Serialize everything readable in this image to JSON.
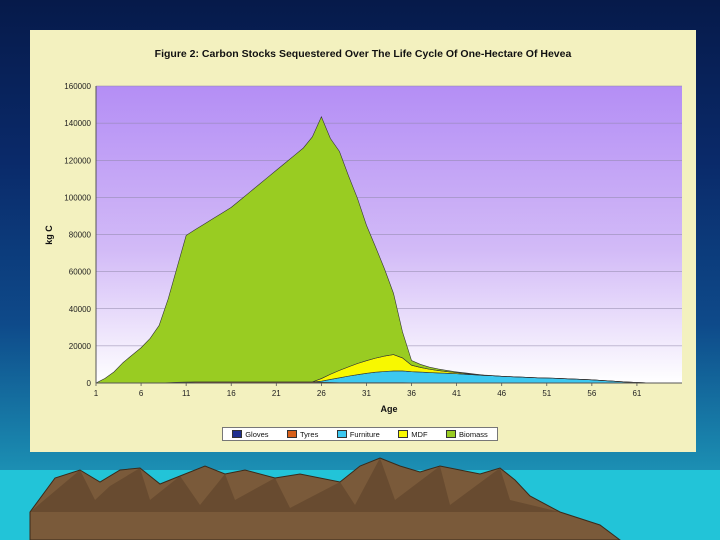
{
  "chart_data": {
    "type": "area",
    "title": "Figure 2: Carbon Stocks Sequestered Over The Life Cycle Of One-Hectare Of Hevea",
    "xlabel": "Age",
    "ylabel": "kg C",
    "xlim": [
      1,
      66
    ],
    "ylim": [
      0,
      160000
    ],
    "x_ticks": [
      "1",
      "6",
      "11",
      "16",
      "21",
      "26",
      "31",
      "36",
      "41",
      "46",
      "51",
      "56",
      "61"
    ],
    "y_ticks": [
      "0",
      "20000",
      "40000",
      "60000",
      "80000",
      "100000",
      "120000",
      "140000",
      "160000"
    ],
    "legend_position": "bottom",
    "x": [
      1,
      2,
      3,
      4,
      5,
      6,
      7,
      8,
      9,
      10,
      11,
      12,
      13,
      14,
      15,
      16,
      17,
      18,
      19,
      20,
      21,
      22,
      23,
      24,
      25,
      26,
      27,
      28,
      29,
      30,
      31,
      32,
      33,
      34,
      35,
      36,
      37,
      38,
      39,
      40,
      41,
      42,
      43,
      44,
      45,
      46,
      47,
      48,
      49,
      50,
      51,
      52,
      53,
      54,
      55,
      56,
      57,
      58,
      59,
      60,
      61,
      62,
      63,
      64,
      65,
      66
    ],
    "series": [
      {
        "name": "Gloves",
        "color": "#1f2f8f",
        "values": [
          0,
          0,
          0,
          0,
          0,
          0,
          0,
          0,
          0,
          0,
          0,
          0,
          0,
          0,
          0,
          0,
          0,
          0,
          0,
          0,
          0,
          0,
          0,
          0,
          0,
          0,
          0,
          0,
          0,
          0,
          0,
          0,
          0,
          0,
          0,
          0,
          0,
          0,
          0,
          0,
          0,
          0,
          0,
          0,
          0,
          0,
          0,
          0,
          0,
          0,
          0,
          0,
          0,
          0,
          0,
          0,
          0,
          0,
          0,
          0,
          0,
          0,
          0,
          0,
          0,
          0
        ]
      },
      {
        "name": "Tyres",
        "color": "#d8601a",
        "values": [
          0,
          0,
          0,
          0,
          0,
          0,
          0,
          0,
          200,
          400,
          500,
          600,
          600,
          600,
          600,
          600,
          600,
          600,
          600,
          600,
          600,
          600,
          600,
          600,
          600,
          400,
          300,
          200,
          200,
          200,
          200,
          200,
          200,
          200,
          200,
          100,
          100,
          100,
          100,
          100,
          100,
          100,
          0,
          0,
          0,
          0,
          0,
          0,
          0,
          0,
          0,
          0,
          0,
          0,
          0,
          0,
          0,
          0,
          0,
          0,
          0,
          0,
          0,
          0,
          0,
          0
        ]
      },
      {
        "name": "Furniture",
        "color": "#3cc8f0",
        "values": [
          0,
          0,
          0,
          0,
          0,
          0,
          0,
          0,
          0,
          0,
          0,
          0,
          0,
          0,
          0,
          0,
          0,
          0,
          0,
          0,
          0,
          0,
          0,
          0,
          0,
          600,
          1600,
          2600,
          3500,
          4300,
          5000,
          5600,
          6000,
          6300,
          6300,
          6000,
          5800,
          5500,
          5300,
          5100,
          4900,
          4600,
          4400,
          4100,
          3900,
          3600,
          3400,
          3200,
          3000,
          2800,
          2700,
          2500,
          2300,
          2100,
          1900,
          1700,
          1400,
          1100,
          800,
          500,
          300,
          100,
          0,
          0,
          0,
          0
        ]
      },
      {
        "name": "MDF",
        "color": "#f8f800",
        "values": [
          0,
          0,
          0,
          0,
          0,
          0,
          0,
          0,
          0,
          0,
          0,
          0,
          0,
          0,
          0,
          0,
          0,
          0,
          0,
          0,
          0,
          0,
          0,
          0,
          0,
          1400,
          2800,
          4000,
          5000,
          6000,
          6800,
          7600,
          8300,
          8800,
          7000,
          3500,
          2500,
          1800,
          1300,
          900,
          600,
          400,
          200,
          100,
          0,
          0,
          0,
          0,
          0,
          0,
          0,
          0,
          0,
          0,
          0,
          0,
          0,
          0,
          0,
          0,
          0,
          0,
          0,
          0,
          0,
          0
        ]
      },
      {
        "name": "Biomass",
        "color": "#99cc22",
        "values": [
          0,
          2500,
          6000,
          11000,
          15000,
          19000,
          24000,
          31000,
          45000,
          62000,
          79000,
          82000,
          85000,
          88000,
          91000,
          94000,
          98000,
          102000,
          106000,
          110000,
          114000,
          118000,
          122000,
          126000,
          132000,
          141000,
          127000,
          118000,
          103000,
          89000,
          73000,
          60000,
          47000,
          33000,
          14000,
          2500,
          1600,
          1100,
          800,
          600,
          400,
          300,
          200,
          100,
          100,
          0,
          0,
          0,
          0,
          0,
          0,
          0,
          0,
          0,
          0,
          0,
          0,
          0,
          0,
          0,
          0,
          0,
          0,
          0,
          0,
          0
        ]
      }
    ]
  }
}
